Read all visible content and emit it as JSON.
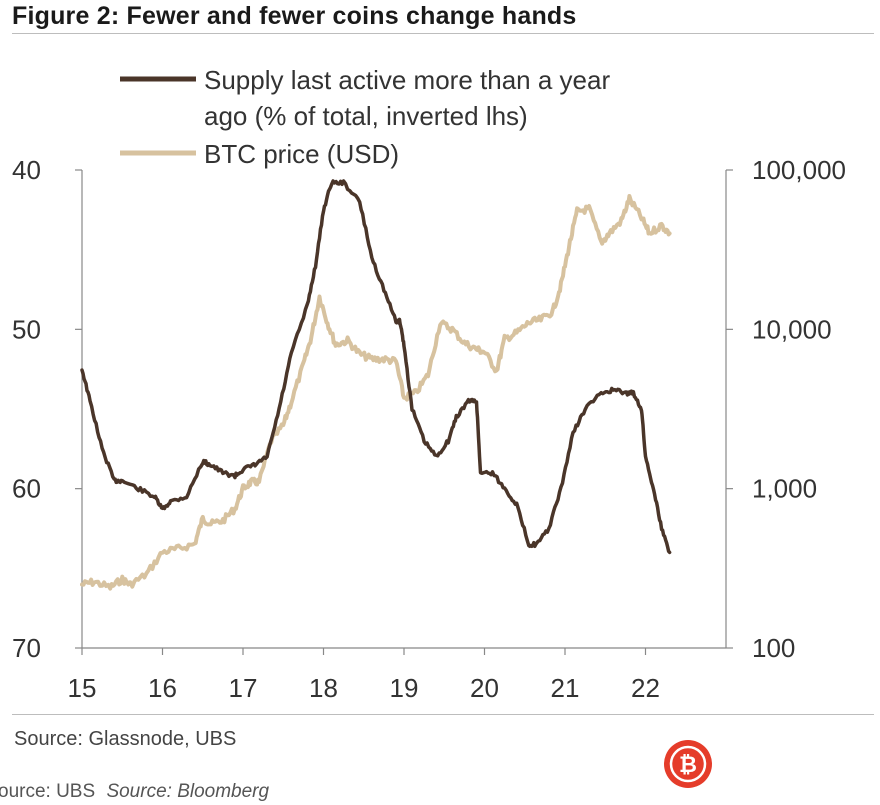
{
  "title": "Figure 2: Fewer and fewer coins change hands",
  "source": "Source: Glassnode, UBS",
  "footer": {
    "left": "ource: UBS",
    "right": "Source: Bloomberg"
  },
  "colors": {
    "supply": "#4a3529",
    "price": "#d7c29f",
    "axis": "#888888",
    "text": "#333333",
    "badge": "#e53c2a"
  },
  "chart_data": {
    "type": "line",
    "title": "Figure 2: Fewer and fewer coins change hands",
    "x_ticks": [
      "15",
      "16",
      "17",
      "18",
      "19",
      "20",
      "21",
      "22"
    ],
    "x_range": [
      2015.0,
      2023.0
    ],
    "left_axis": {
      "ticks": [
        "40",
        "50",
        "60",
        "70"
      ],
      "range": [
        40,
        70
      ],
      "inverted": true
    },
    "right_axis": {
      "ticks": [
        "100,000",
        "10,000",
        "1,000",
        "100"
      ],
      "range": [
        100,
        100000
      ],
      "scale": "log"
    },
    "series": [
      {
        "name": "Supply last active more than a year ago (% of total, inverted lhs)",
        "legend_lines": [
          "Supply last active more than a year",
          "ago (% of total, inverted lhs)"
        ],
        "axis": "left",
        "x": [
          2015.0,
          2015.1,
          2015.25,
          2015.4,
          2015.5,
          2015.7,
          2015.9,
          2016.0,
          2016.1,
          2016.3,
          2016.5,
          2016.6,
          2016.75,
          2016.9,
          2017.0,
          2017.15,
          2017.3,
          2017.45,
          2017.6,
          2017.8,
          2017.9,
          2018.0,
          2018.1,
          2018.25,
          2018.45,
          2018.6,
          2018.75,
          2018.9,
          2018.95,
          2019.0,
          2019.1,
          2019.25,
          2019.4,
          2019.55,
          2019.65,
          2019.8,
          2019.9,
          2019.95,
          2020.1,
          2020.25,
          2020.4,
          2020.55,
          2020.65,
          2020.8,
          2020.95,
          2021.1,
          2021.25,
          2021.45,
          2021.6,
          2021.75,
          2021.85,
          2021.95,
          2022.0,
          2022.1,
          2022.2,
          2022.3
        ],
        "values": [
          52.5,
          54.5,
          57.5,
          59.5,
          59.5,
          60.0,
          60.5,
          61.3,
          60.8,
          60.5,
          58.3,
          58.5,
          59.0,
          59.2,
          58.8,
          58.5,
          58.0,
          55.0,
          51.5,
          48.5,
          46.0,
          42.5,
          40.8,
          40.8,
          42.0,
          45.5,
          47.5,
          49.5,
          49.5,
          51.0,
          55.0,
          57.0,
          58.0,
          57.0,
          55.5,
          54.5,
          54.5,
          59.0,
          59.0,
          60.0,
          61.0,
          63.5,
          63.5,
          62.5,
          60.0,
          56.5,
          55.0,
          54.0,
          53.8,
          54.0,
          54.0,
          55.0,
          58.0,
          60.0,
          62.5,
          64.0
        ]
      },
      {
        "name": "BTC price (USD)",
        "legend_lines": [
          "BTC price (USD)"
        ],
        "axis": "right",
        "x": [
          2015.0,
          2015.15,
          2015.35,
          2015.5,
          2015.6,
          2015.8,
          2016.0,
          2016.2,
          2016.4,
          2016.5,
          2016.6,
          2016.75,
          2016.9,
          2017.0,
          2017.1,
          2017.2,
          2017.35,
          2017.5,
          2017.6,
          2017.75,
          2017.85,
          2017.95,
          2018.05,
          2018.15,
          2018.3,
          2018.45,
          2018.6,
          2018.75,
          2018.9,
          2019.0,
          2019.15,
          2019.3,
          2019.45,
          2019.6,
          2019.75,
          2019.9,
          2020.0,
          2020.15,
          2020.25,
          2020.4,
          2020.55,
          2020.7,
          2020.85,
          2020.95,
          2021.05,
          2021.15,
          2021.3,
          2021.45,
          2021.55,
          2021.7,
          2021.8,
          2021.95,
          2022.05,
          2022.2,
          2022.3
        ],
        "values": [
          250,
          260,
          240,
          270,
          250,
          290,
          400,
          420,
          450,
          650,
          600,
          630,
          750,
          1000,
          1100,
          1100,
          2000,
          2500,
          3500,
          6000,
          9000,
          16000,
          11000,
          8000,
          8500,
          7000,
          6500,
          6500,
          6300,
          3700,
          4000,
          5200,
          11000,
          10000,
          8200,
          7500,
          7200,
          5500,
          8700,
          9500,
          11000,
          11500,
          13000,
          19000,
          33000,
          55000,
          57000,
          35000,
          40000,
          48000,
          66000,
          50000,
          40000,
          45000,
          40000
        ]
      }
    ]
  }
}
